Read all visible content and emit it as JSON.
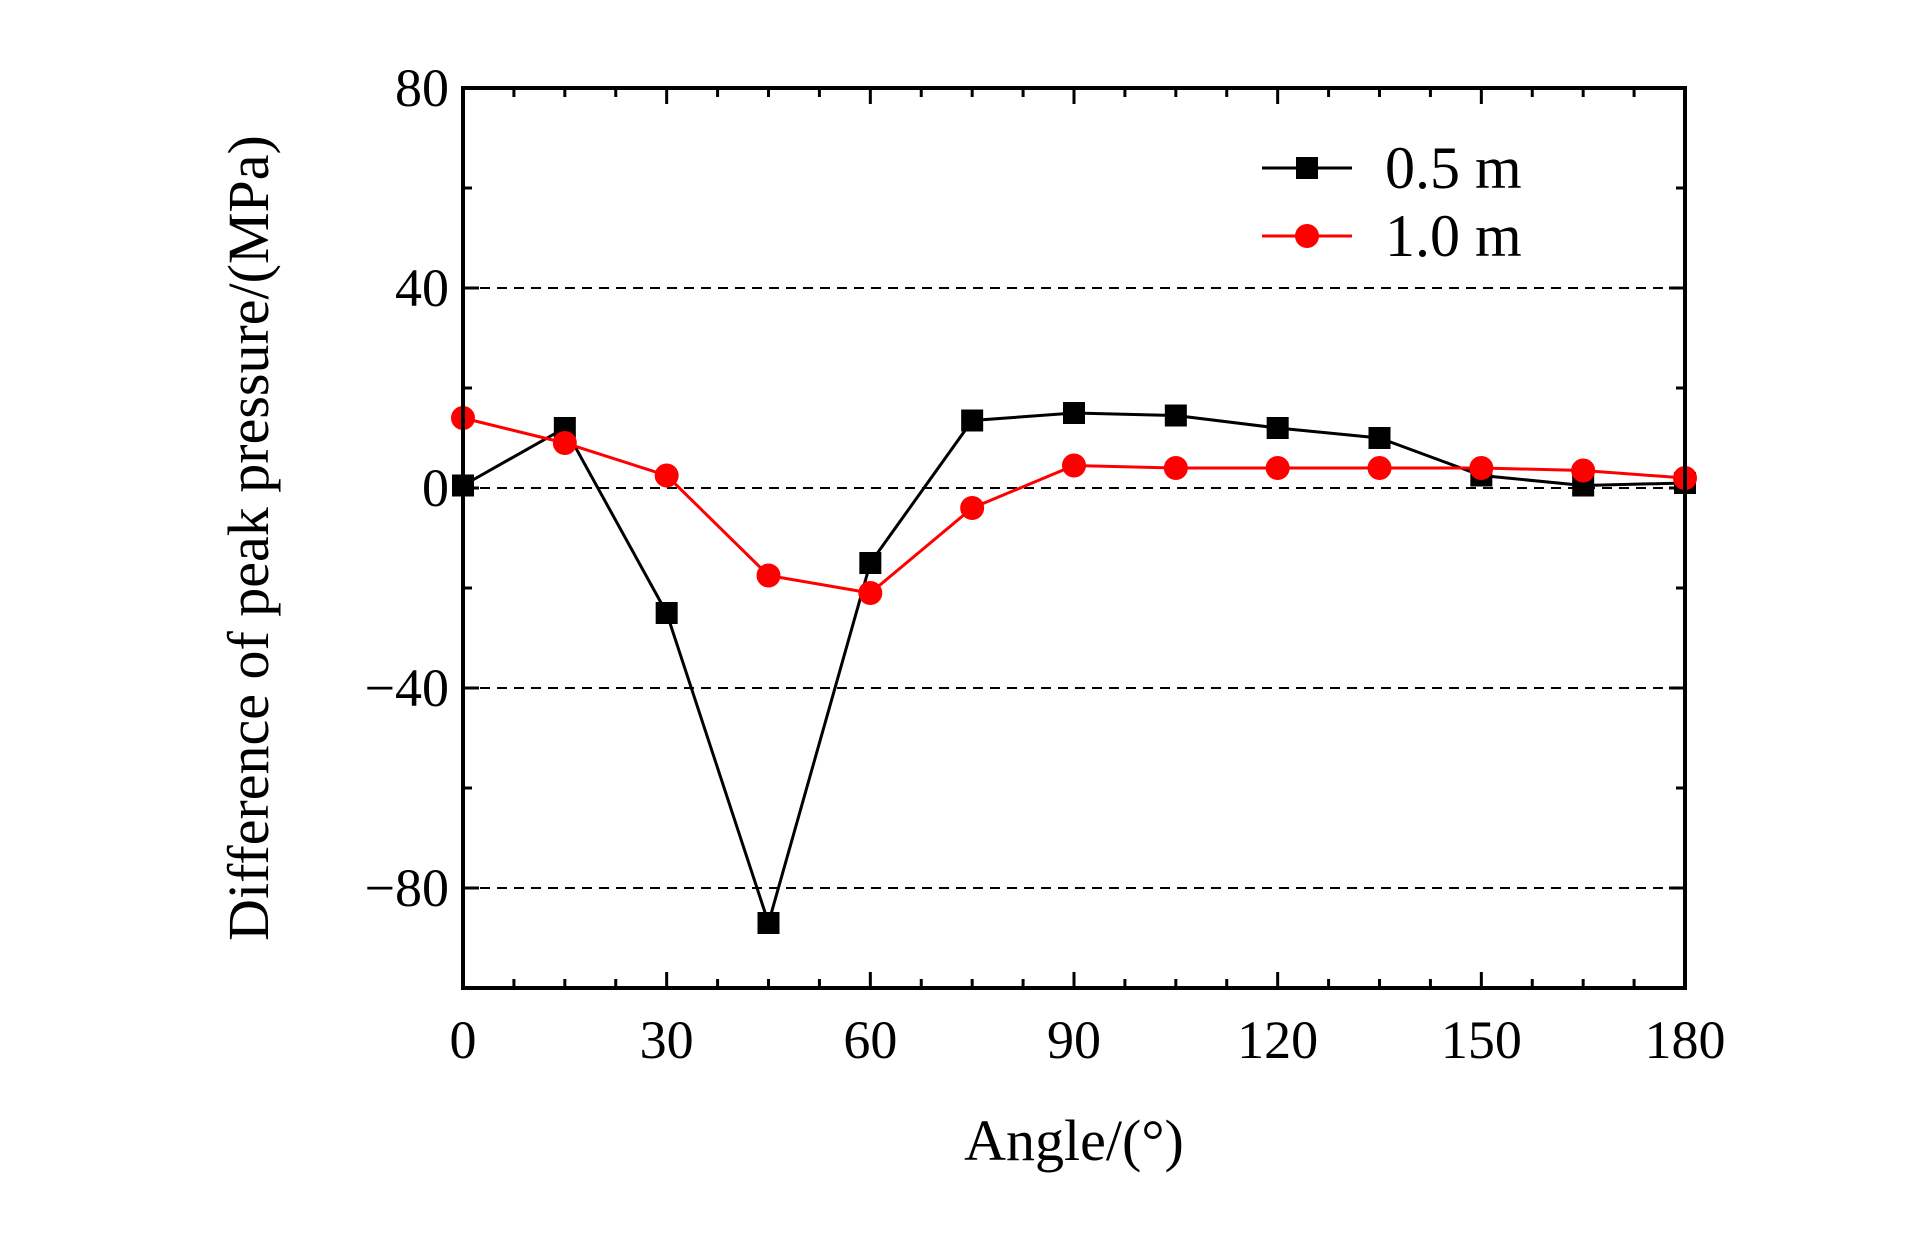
{
  "chart_data": {
    "type": "line",
    "title": "",
    "xlabel": "Angle/(°)",
    "ylabel": "Difference of peak pressure/(MPa)",
    "xlim": [
      0,
      180
    ],
    "ylim": [
      -100,
      80
    ],
    "xticks": [
      0,
      30,
      60,
      90,
      120,
      150,
      180
    ],
    "xtick_labels": [
      "0",
      "30",
      "60",
      "90",
      "120",
      "150",
      "180"
    ],
    "yticks": [
      -80,
      -40,
      0,
      40,
      80
    ],
    "ytick_labels": [
      "−80",
      "−40",
      "0",
      "40",
      "80"
    ],
    "grid_y_dashed": [
      -80,
      -40,
      0,
      40
    ],
    "legend_position": "top-right",
    "x": [
      0,
      15,
      30,
      45,
      60,
      75,
      90,
      105,
      120,
      135,
      150,
      165,
      180
    ],
    "series": [
      {
        "name": "0.5 m",
        "color": "#000000",
        "marker": "square",
        "values": [
          0.5,
          12,
          -25,
          -87,
          -15,
          13.5,
          15,
          14.5,
          12,
          10,
          2.5,
          0.5,
          1
        ]
      },
      {
        "name": "1.0 m",
        "color": "#ff0000",
        "marker": "circle",
        "values": [
          14,
          9,
          2.5,
          -17.5,
          -21,
          -4,
          4.5,
          4,
          4,
          4,
          4,
          3.5,
          2
        ]
      }
    ]
  }
}
